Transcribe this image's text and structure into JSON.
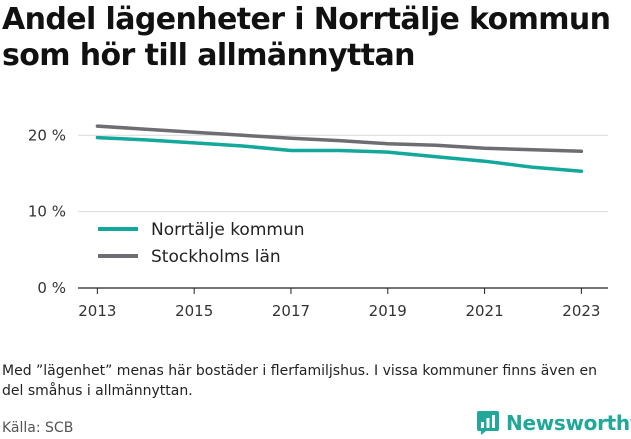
{
  "title": "Andel lägenheter i Norrtälje kommun som hör till allmännyttan",
  "note": "Med ”lägenhet” menas här bostäder i flerfamiljshus. I vissa kommuner finns även en del småhus i allmännyttan.",
  "source": "Källa: SCB",
  "brand": {
    "name": "Newsworthy",
    "icon": "newsworthy-logo-icon",
    "color": "#21a89a"
  },
  "chart_data": {
    "type": "line",
    "x": [
      2013,
      2014,
      2015,
      2016,
      2017,
      2018,
      2019,
      2020,
      2021,
      2022,
      2023
    ],
    "x_tick_labels": [
      "2013",
      "2015",
      "2017",
      "2019",
      "2021",
      "2023"
    ],
    "x_tick_values": [
      2013,
      2015,
      2017,
      2019,
      2021,
      2023
    ],
    "y_tick_labels": [
      "0 %",
      "10 %",
      "20 %"
    ],
    "y_tick_values": [
      0,
      10,
      20
    ],
    "ylim": [
      0,
      22
    ],
    "grid": true,
    "legend_position": "left",
    "series": [
      {
        "name": "Norrtälje kommun",
        "color": "#12a89b",
        "values": [
          19.7,
          19.4,
          19.0,
          18.6,
          18.0,
          18.0,
          17.8,
          17.2,
          16.6,
          15.8,
          15.3
        ]
      },
      {
        "name": "Stockholms län",
        "color": "#6e6e72",
        "values": [
          21.2,
          20.8,
          20.4,
          20.0,
          19.6,
          19.3,
          18.9,
          18.7,
          18.3,
          18.1,
          17.9
        ]
      }
    ]
  }
}
